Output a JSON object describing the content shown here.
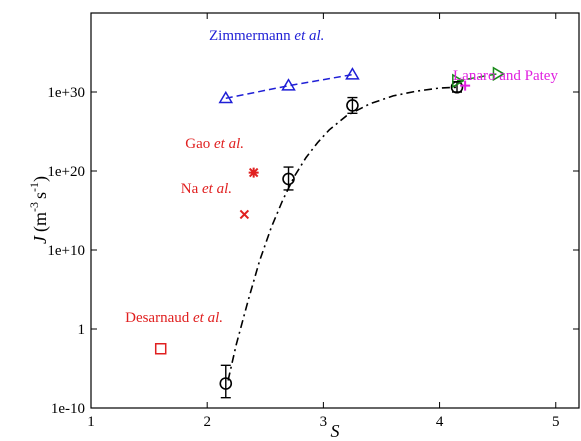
{
  "chart_data": {
    "type": "scatter",
    "xlabel": "S",
    "ylabel": "J (m-3 s-1)",
    "ylabel_parts": {
      "symbol": "J",
      "unit_open": "(m",
      "exp1": "-3",
      "mid": "s",
      "exp2": "-1",
      "unit_close": ")"
    },
    "xlim": [
      1,
      5.2
    ],
    "ylim_log10": [
      -10,
      40
    ],
    "y_scale": "log",
    "x_ticks": [
      1,
      2,
      3,
      4,
      5
    ],
    "x_tick_labels": [
      "1",
      "2",
      "3",
      "4",
      "5"
    ],
    "y_ticks_log10": [
      -10,
      0,
      10,
      20,
      30
    ],
    "y_tick_labels": [
      "1e-10",
      "1",
      "1e+10",
      "1e+20",
      "1e+30"
    ],
    "grid": false,
    "legend": "none",
    "series": [
      {
        "name": "",
        "marker": "circle",
        "color": "#000000",
        "points": [
          {
            "x": 2.16,
            "y_log10": -6.9,
            "err_low_log10": -8.7,
            "err_high_log10": -4.6
          },
          {
            "x": 2.7,
            "y_log10": 19.0,
            "err_low_log10": 17.6,
            "err_high_log10": 20.5
          },
          {
            "x": 3.25,
            "y_log10": 28.3,
            "err_low_log10": 27.3,
            "err_high_log10": 29.3
          },
          {
            "x": 4.15,
            "y_log10": 30.6,
            "err_low_log10": 30.0,
            "err_high_log10": 31.3
          }
        ],
        "fit_curve": {
          "style": "dash-dot",
          "x": [
            2.18,
            2.25,
            2.35,
            2.45,
            2.55,
            2.65,
            2.75,
            2.85,
            2.95,
            3.05,
            3.2,
            3.4,
            3.6,
            3.8,
            4.0,
            4.15
          ],
          "y_log10": [
            -6.5,
            -2.0,
            3.5,
            8.6,
            12.8,
            16.3,
            19.3,
            21.7,
            23.6,
            25.2,
            27.0,
            28.5,
            29.5,
            30.1,
            30.5,
            30.6
          ]
        }
      },
      {
        "name": "Zimmermann et al.",
        "label_prefix": "Zimmermann ",
        "label_italic": "et al.",
        "marker": "triangle",
        "color": "#1f1fd6",
        "line": "dashed",
        "points": [
          {
            "x": 2.16,
            "y_log10": 29.2
          },
          {
            "x": 2.7,
            "y_log10": 30.8
          },
          {
            "x": 3.25,
            "y_log10": 32.2
          }
        ]
      },
      {
        "name": "",
        "marker": "triangle-right",
        "color": "#1a8a1a",
        "line": "dashed",
        "points": [
          {
            "x": 4.15,
            "y_log10": 31.4
          },
          {
            "x": 4.5,
            "y_log10": 32.3
          }
        ]
      },
      {
        "name": "Lanaro and Patey",
        "marker": "plus",
        "color": "#e020e0",
        "points": [
          {
            "x": 4.22,
            "y_log10": 30.8
          }
        ]
      },
      {
        "name": "Gao et al.",
        "label_prefix": "Gao ",
        "label_italic": "et al.",
        "marker": "asterisk",
        "color": "#e02020",
        "points": [
          {
            "x": 2.4,
            "y_log10": 19.8
          }
        ]
      },
      {
        "name": "Na et al.",
        "label_prefix": "Na ",
        "label_italic": "et al.",
        "marker": "x",
        "color": "#e02020",
        "points": [
          {
            "x": 2.32,
            "y_log10": 14.5
          }
        ]
      },
      {
        "name": "Desarnaud et al.",
        "label_prefix": "Desarnaud ",
        "label_italic": "et al.",
        "marker": "square",
        "color": "#e02020",
        "points": [
          {
            "x": 1.6,
            "y_log10": -2.5
          }
        ]
      }
    ]
  }
}
